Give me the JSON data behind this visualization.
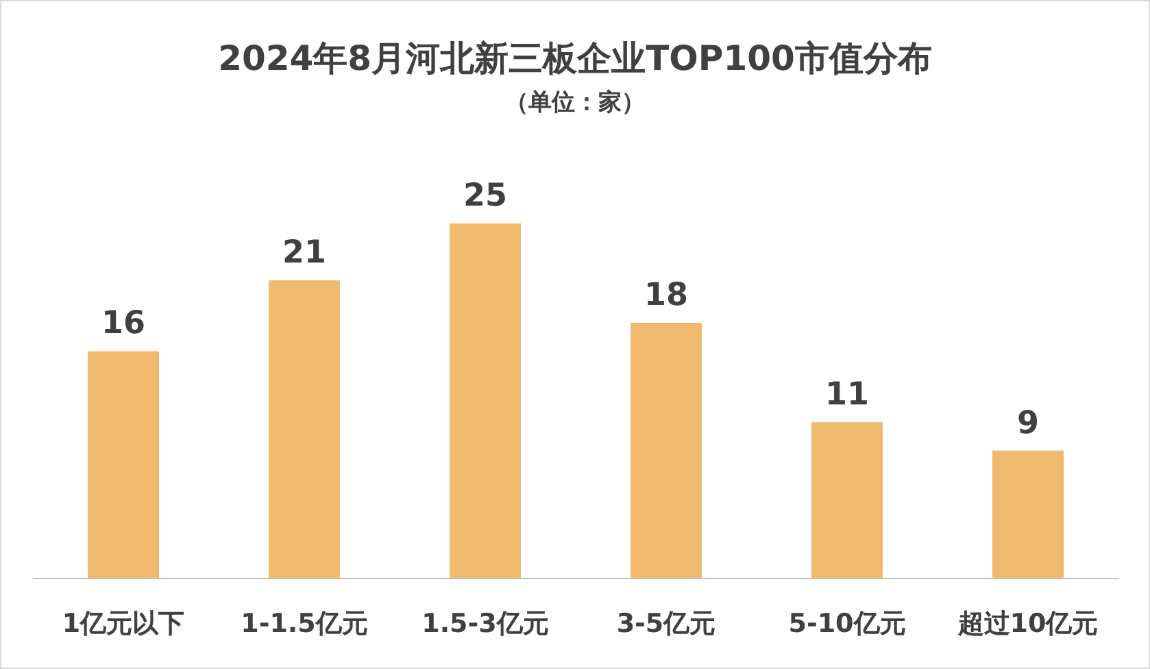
{
  "chart_data": {
    "type": "bar",
    "title": "2024年8月河北新三板企业TOP100市值分布",
    "subtitle": "（单位：家）",
    "categories": [
      "1亿元以下",
      "1-1.5亿元",
      "1.5-3亿元",
      "3-5亿元",
      "5-10亿元",
      "超过10亿元"
    ],
    "values": [
      16,
      21,
      25,
      18,
      11,
      9
    ],
    "color": "#f0bb6e",
    "data_labels": true
  }
}
